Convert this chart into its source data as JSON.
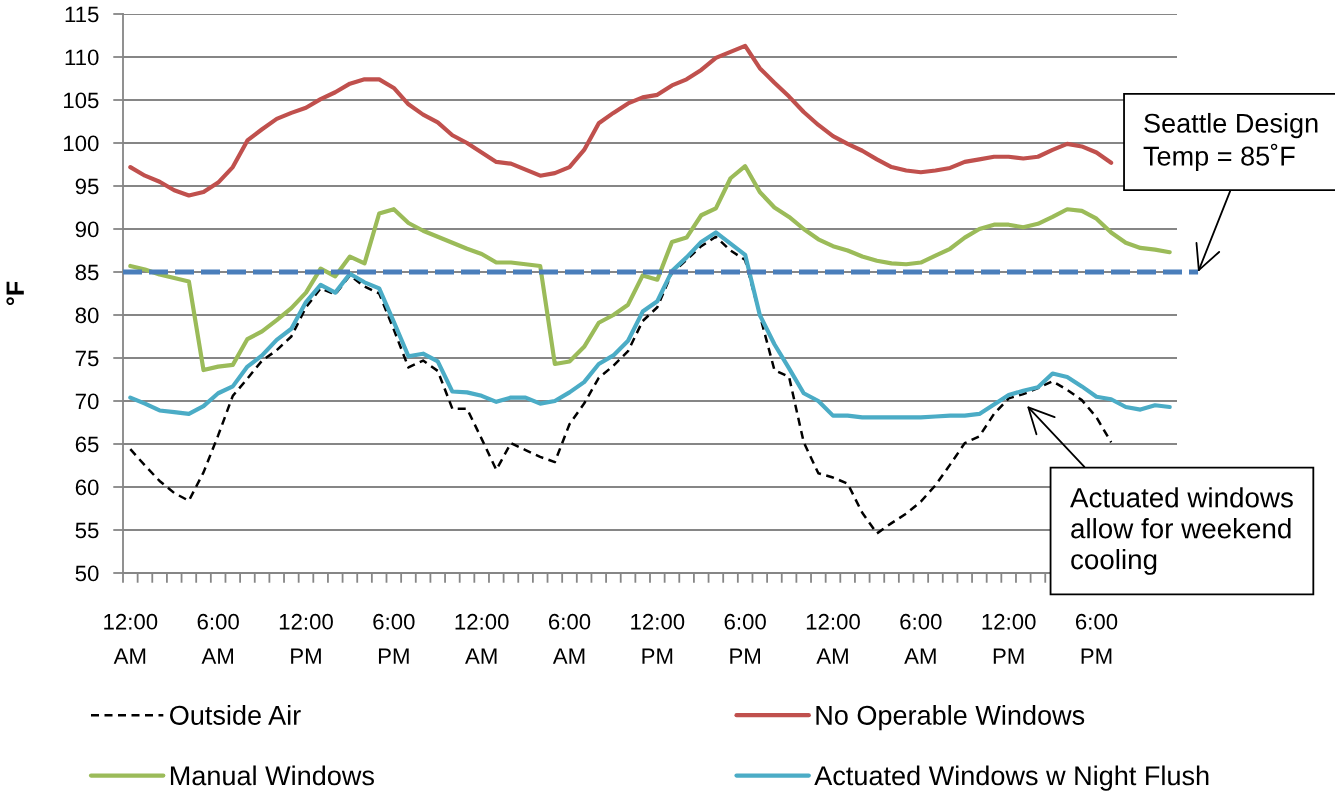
{
  "chart_data": {
    "type": "line",
    "ylabel": "°F",
    "categories": [
      "12:00\nAM",
      null,
      null,
      null,
      null,
      null,
      "6:00\nAM",
      null,
      null,
      null,
      null,
      null,
      "12:00\nPM",
      null,
      null,
      null,
      null,
      null,
      "6:00\nPM",
      null,
      null,
      null,
      null,
      null,
      "12:00\nAM",
      null,
      null,
      null,
      null,
      null,
      "6:00\nAM",
      null,
      null,
      null,
      null,
      null,
      "12:00\nPM",
      null,
      null,
      null,
      null,
      null,
      "6:00\nPM",
      null,
      null,
      null,
      null,
      null,
      "12:00\nAM",
      null,
      null,
      null,
      null,
      null,
      "6:00\nAM",
      null,
      null,
      null,
      null,
      null,
      "12:00\nPM",
      null,
      null,
      null,
      null,
      null,
      "6:00\nPM",
      null,
      null,
      null,
      null,
      null
    ],
    "ylim": [
      50,
      115
    ],
    "yticks": [
      50,
      55,
      60,
      65,
      70,
      75,
      80,
      85,
      90,
      95,
      100,
      105,
      110,
      115
    ],
    "grid": "y",
    "legend": "bottom",
    "series": [
      {
        "name": "Outside Air",
        "color": "#000000",
        "line_style": "dashed",
        "values": [
          64.4,
          62.5,
          60.7,
          59.3,
          58.4,
          61.7,
          66.0,
          70.6,
          72.6,
          74.7,
          75.9,
          77.5,
          80.9,
          83.1,
          82.4,
          84.6,
          83.3,
          82.5,
          78.3,
          73.9,
          74.7,
          73.5,
          69.1,
          69.1,
          65.6,
          62.0,
          65.1,
          64.3,
          63.5,
          62.9,
          67.3,
          69.7,
          72.7,
          74.1,
          75.8,
          79.3,
          80.9,
          84.9,
          86.4,
          88.0,
          89.1,
          87.5,
          86.4,
          80.0,
          73.6,
          72.8,
          65.2,
          61.6,
          61.1,
          60.4,
          57.0,
          54.6,
          55.8,
          56.9,
          58.3,
          60.2,
          62.6,
          65.1,
          65.9,
          68.5,
          70.3,
          70.8,
          71.5,
          72.3,
          71.3,
          70.1,
          68.1,
          65.2,
          null,
          null,
          null,
          null
        ]
      },
      {
        "name": "No Operable Windows",
        "color": "#c0504d",
        "line_style": "solid",
        "values": [
          97.2,
          96.2,
          95.5,
          94.5,
          93.9,
          94.3,
          95.4,
          97.2,
          100.3,
          101.6,
          102.8,
          103.5,
          104.1,
          105.1,
          105.9,
          106.9,
          107.4,
          107.4,
          106.4,
          104.5,
          103.3,
          102.4,
          100.9,
          100.0,
          98.9,
          97.8,
          97.6,
          96.9,
          96.2,
          96.5,
          97.2,
          99.2,
          102.3,
          103.5,
          104.6,
          105.3,
          105.6,
          106.7,
          107.4,
          108.5,
          109.9,
          110.6,
          111.3,
          108.7,
          107.0,
          105.4,
          103.6,
          102.1,
          100.8,
          99.9,
          99.1,
          98.1,
          97.2,
          96.8,
          96.6,
          96.8,
          97.1,
          97.8,
          98.1,
          98.4,
          98.4,
          98.2,
          98.4,
          99.2,
          99.9,
          99.6,
          98.9,
          97.7,
          null,
          null,
          null,
          null
        ]
      },
      {
        "name": "Manual Windows",
        "color": "#9bbb59",
        "line_style": "solid",
        "values": [
          85.7,
          85.3,
          84.7,
          84.3,
          83.9,
          73.6,
          74.0,
          74.2,
          77.2,
          78.1,
          79.4,
          80.8,
          82.6,
          85.4,
          84.5,
          86.8,
          86.0,
          91.8,
          92.3,
          90.7,
          89.8,
          89.1,
          88.4,
          87.7,
          87.1,
          86.1,
          86.1,
          85.9,
          85.7,
          74.3,
          74.6,
          76.3,
          79.1,
          80.0,
          81.2,
          84.6,
          84.1,
          88.5,
          89.0,
          91.6,
          92.4,
          95.9,
          97.3,
          94.3,
          92.5,
          91.4,
          90.0,
          88.8,
          88.0,
          87.5,
          86.8,
          86.3,
          86.0,
          85.9,
          86.1,
          86.9,
          87.7,
          89.0,
          90.0,
          90.5,
          90.5,
          90.2,
          90.6,
          91.4,
          92.3,
          92.1,
          91.2,
          89.6,
          88.4,
          87.8,
          87.6,
          87.3
        ]
      },
      {
        "name": "Actuated Windows w Night Flush",
        "color": "#4bacc6",
        "line_style": "solid",
        "values": [
          70.4,
          69.7,
          68.9,
          68.7,
          68.5,
          69.4,
          70.9,
          71.7,
          74.0,
          75.3,
          77.1,
          78.4,
          81.5,
          83.5,
          82.6,
          84.8,
          83.8,
          83.1,
          79.2,
          75.2,
          75.5,
          74.6,
          71.1,
          71.0,
          70.6,
          69.9,
          70.4,
          70.4,
          69.7,
          70.0,
          71.0,
          72.2,
          74.3,
          75.3,
          77.0,
          80.4,
          81.6,
          85.1,
          86.7,
          88.5,
          89.6,
          88.3,
          87.0,
          80.0,
          76.6,
          73.8,
          70.9,
          70.0,
          68.3,
          68.3,
          68.1,
          68.1,
          68.1,
          68.1,
          68.1,
          68.2,
          68.3,
          68.3,
          68.5,
          69.6,
          70.7,
          71.2,
          71.6,
          73.2,
          72.8,
          71.7,
          70.5,
          70.2,
          69.3,
          69.0,
          69.5,
          69.3
        ]
      }
    ],
    "ref_lines": [
      {
        "axis": "y",
        "value": 85,
        "label": "Seattle Design\nTemp = 85˚F",
        "color": "#4a7ebb",
        "line_style": "dashed"
      }
    ],
    "annotations": [
      "Actuated windows\nallow for weekend\ncooling"
    ]
  }
}
